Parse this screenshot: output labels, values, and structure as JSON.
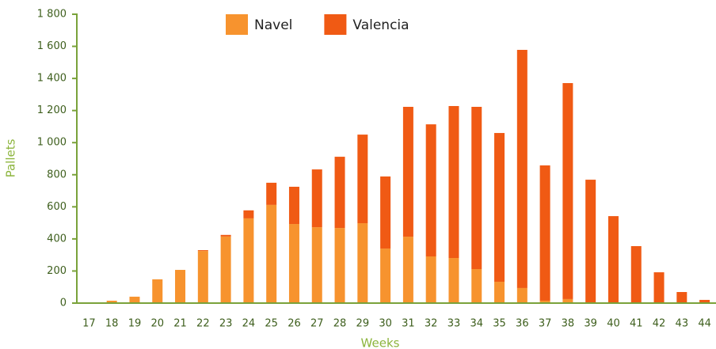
{
  "chart_data": {
    "type": "stacked_bar",
    "x_label": "Weeks",
    "y_label": "Pallets",
    "categories": [
      "17",
      "18",
      "19",
      "20",
      "21",
      "22",
      "23",
      "24",
      "25",
      "26",
      "27",
      "28",
      "29",
      "30",
      "31",
      "32",
      "33",
      "34",
      "35",
      "36",
      "37",
      "38",
      "39",
      "40",
      "41",
      "42",
      "43",
      "44"
    ],
    "series": [
      {
        "name": "Navel",
        "color": "#f7932e",
        "values": [
          3,
          15,
          40,
          148,
          207,
          325,
          415,
          528,
          612,
          493,
          473,
          468,
          498,
          340,
          414,
          291,
          281,
          212,
          133,
          94,
          15,
          25,
          5,
          0,
          0,
          0,
          0,
          0
        ]
      },
      {
        "name": "Valencia",
        "color": "#f05a14",
        "values": [
          0,
          0,
          0,
          0,
          0,
          5,
          10,
          50,
          138,
          232,
          360,
          444,
          552,
          449,
          809,
          823,
          947,
          1011,
          927,
          1484,
          843,
          1346,
          764,
          542,
          355,
          192,
          69,
          20
        ]
      }
    ],
    "ylim": [
      0,
      1800
    ],
    "yticks": [
      0,
      200,
      400,
      600,
      800,
      {
        "value": 1000,
        "label": "1 000"
      },
      {
        "value": 1200,
        "label": "1 200"
      },
      {
        "value": 1400,
        "label": "1 400"
      },
      {
        "value": 1600,
        "label": "1 600"
      },
      {
        "value": 1800,
        "label": "1 800"
      }
    ],
    "legend": "top"
  }
}
